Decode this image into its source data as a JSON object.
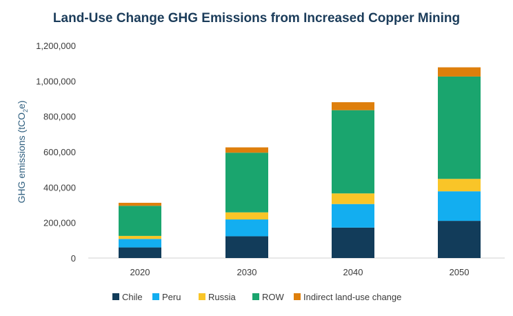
{
  "chart_data": {
    "type": "bar",
    "stacked": true,
    "title": "Land-Use Change GHG Emissions from Increased Copper Mining",
    "ylabel": "GHG emissions (tCO2e)",
    "xlabel": "",
    "categories": [
      "2020",
      "2030",
      "2040",
      "2050"
    ],
    "ylim": [
      0,
      1200000
    ],
    "yticks": [
      0,
      200000,
      400000,
      600000,
      800000,
      1000000,
      1200000
    ],
    "ytick_labels": [
      "0",
      "200,000",
      "400,000",
      "600,000",
      "800,000",
      "1,000,000",
      "1,200,000"
    ],
    "legend_position": "bottom",
    "series": [
      {
        "name": "Chile",
        "color": "#123c5a",
        "values": [
          60000,
          123000,
          172000,
          210000
        ]
      },
      {
        "name": "Peru",
        "color": "#13aef0",
        "values": [
          48000,
          95000,
          133000,
          167000
        ]
      },
      {
        "name": "Russia",
        "color": "#f9c528",
        "values": [
          17000,
          40000,
          60000,
          70000
        ]
      },
      {
        "name": "ROW",
        "color": "#1aa56e",
        "values": [
          170000,
          337000,
          470000,
          578000
        ]
      },
      {
        "name": "Indirect land-use change",
        "color": "#de7f0c",
        "values": [
          17000,
          30000,
          45000,
          52000
        ]
      }
    ]
  }
}
